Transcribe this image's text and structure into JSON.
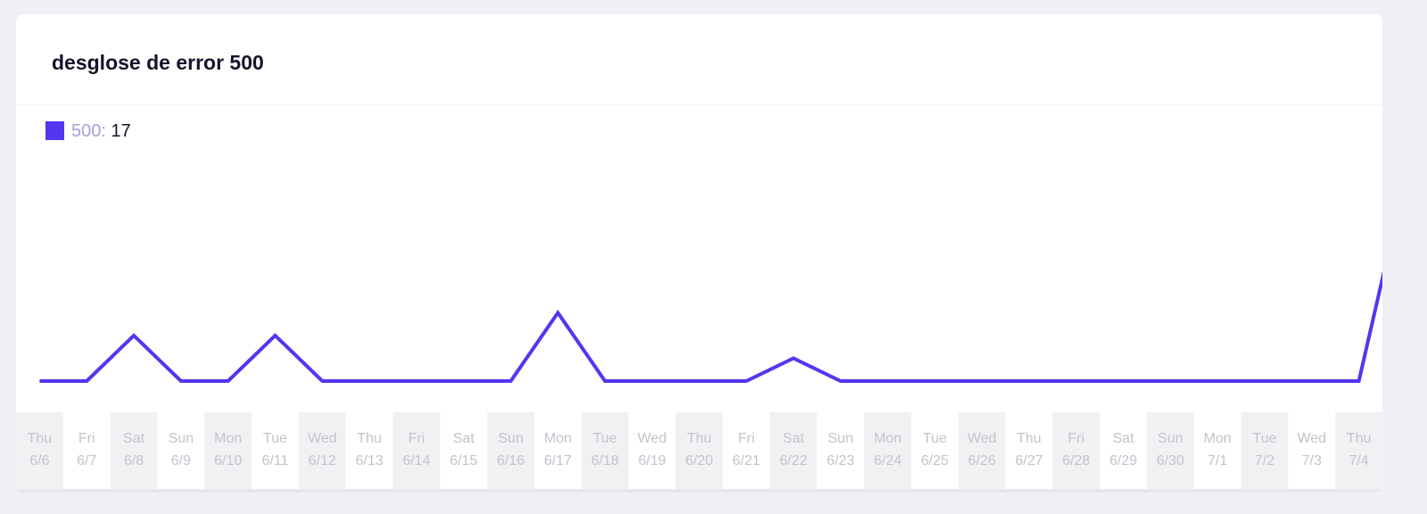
{
  "chart_data": {
    "type": "line",
    "title": "desglose de error 500",
    "categories": [
      [
        "Thu",
        "6/6"
      ],
      [
        "Fri",
        "6/7"
      ],
      [
        "Sat",
        "6/8"
      ],
      [
        "Sun",
        "6/9"
      ],
      [
        "Mon",
        "6/10"
      ],
      [
        "Tue",
        "6/11"
      ],
      [
        "Wed",
        "6/12"
      ],
      [
        "Thu",
        "6/13"
      ],
      [
        "Fri",
        "6/14"
      ],
      [
        "Sat",
        "6/15"
      ],
      [
        "Sun",
        "6/16"
      ],
      [
        "Mon",
        "6/17"
      ],
      [
        "Tue",
        "6/18"
      ],
      [
        "Wed",
        "6/19"
      ],
      [
        "Thu",
        "6/20"
      ],
      [
        "Fri",
        "6/21"
      ],
      [
        "Sat",
        "6/22"
      ],
      [
        "Sun",
        "6/23"
      ],
      [
        "Mon",
        "6/24"
      ],
      [
        "Tue",
        "6/25"
      ],
      [
        "Wed",
        "6/26"
      ],
      [
        "Thu",
        "6/27"
      ],
      [
        "Fri",
        "6/28"
      ],
      [
        "Sat",
        "6/29"
      ],
      [
        "Sun",
        "6/30"
      ],
      [
        "Mon",
        "7/1"
      ],
      [
        "Tue",
        "7/2"
      ],
      [
        "Wed",
        "7/3"
      ],
      [
        "Thu",
        "7/4"
      ],
      null
    ],
    "series": [
      {
        "name": "500",
        "color": "#5535f0",
        "total": 17,
        "values": [
          0,
          0,
          2,
          0,
          0,
          2,
          0,
          0,
          0,
          0,
          0,
          3,
          0,
          0,
          0,
          0,
          1,
          0,
          0,
          0,
          0,
          0,
          0,
          0,
          0,
          0,
          0,
          0,
          0,
          9
        ]
      }
    ],
    "ylim": [
      0,
      10
    ]
  }
}
